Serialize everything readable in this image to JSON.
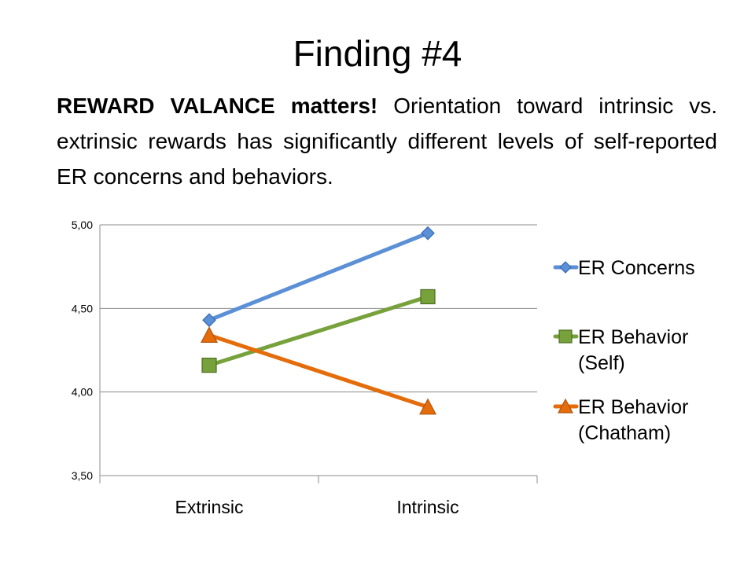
{
  "slide": {
    "title": "Finding #4",
    "subtitle_bold": "REWARD VALANCE matters!",
    "subtitle_rest": " Orientation toward intrinsic vs. extrinsic rewards has significantly different levels of self-reported ER concerns and behaviors."
  },
  "chart_data": {
    "type": "line",
    "title": "",
    "xlabel": "",
    "ylabel": "",
    "categories": [
      "Extrinsic",
      "Intrinsic"
    ],
    "ylim": [
      3.5,
      5.0
    ],
    "yticks": [
      "3,50",
      "4,00",
      "4,50",
      "5,00"
    ],
    "ytick_values": [
      3.5,
      4.0,
      4.5,
      5.0
    ],
    "grid": true,
    "legend_position": "right",
    "series": [
      {
        "name": "ER Concerns",
        "values": [
          4.43,
          4.95
        ],
        "color": "#5B8FD6",
        "marker": "diamond"
      },
      {
        "name": "ER Behavior (Self)",
        "values": [
          4.16,
          4.57
        ],
        "color": "#77A13B",
        "marker": "square"
      },
      {
        "name": "ER Behavior (Chatham)",
        "values": [
          4.34,
          3.91
        ],
        "color": "#E46C0A",
        "marker": "triangle"
      }
    ]
  }
}
